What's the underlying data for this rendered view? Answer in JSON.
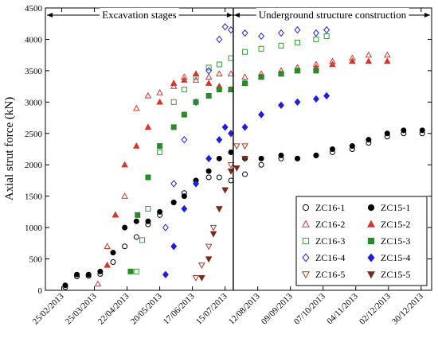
{
  "chart_data": {
    "type": "scatter",
    "title": "",
    "xlabel": "",
    "ylabel": "Axial strut force (kN)",
    "ylim": [
      0,
      4500
    ],
    "yticks": [
      0,
      500,
      1000,
      1500,
      2000,
      2500,
      3000,
      3500,
      4000,
      4500
    ],
    "xlim": [
      "2013-02-11",
      "2014-01-08"
    ],
    "xticks": [
      "2013-02-25",
      "2013-03-25",
      "2013-04-22",
      "2013-05-20",
      "2013-06-17",
      "2013-07-15",
      "2013-08-12",
      "2013-09-09",
      "2013-10-07",
      "2013-11-04",
      "2013-12-02",
      "2013-12-30"
    ],
    "xtick_labels": [
      "25/02/2013",
      "25/03/2013",
      "22/04/2013",
      "20/05/2013",
      "17/06/2013",
      "15/07/2013",
      "12/08/2013",
      "09/09/2013",
      "07/10/2013",
      "04/11/2013",
      "02/12/2013",
      "30/12/2013"
    ],
    "grid": false,
    "legend_position": "bottom-right",
    "annotations": {
      "divider_date": "2013-07-22",
      "left_label": "Excavation stages",
      "right_label": "Underground structure construction"
    },
    "series": [
      {
        "name": "ZC16-1",
        "marker": "circle-open",
        "color": "#000000",
        "dates": [
          "2013-02-28",
          "2013-03-10",
          "2013-03-20",
          "2013-03-30",
          "2013-04-10",
          "2013-04-20",
          "2013-04-30",
          "2013-05-10",
          "2013-05-20",
          "2013-06-01",
          "2013-06-10",
          "2013-06-20",
          "2013-07-01",
          "2013-07-10",
          "2013-07-20",
          "2013-08-01",
          "2013-08-15",
          "2013-09-01",
          "2013-09-15",
          "2013-10-01",
          "2013-10-15",
          "2013-11-01",
          "2013-11-15",
          "2013-12-01",
          "2013-12-15",
          "2013-12-31"
        ],
        "values": [
          50,
          220,
          230,
          260,
          450,
          700,
          850,
          1050,
          1200,
          1400,
          1550,
          1750,
          1800,
          1800,
          1750,
          1850,
          2000,
          2100,
          2100,
          2150,
          2200,
          2250,
          2350,
          2450,
          2500,
          2500
        ]
      },
      {
        "name": "ZC16-2",
        "marker": "triangle-up-open",
        "color": "#d9342a",
        "dates": [
          "2013-03-28",
          "2013-04-05",
          "2013-04-12",
          "2013-04-20",
          "2013-04-30",
          "2013-05-10",
          "2013-05-20",
          "2013-06-01",
          "2013-06-10",
          "2013-06-20",
          "2013-07-01",
          "2013-07-10",
          "2013-07-20",
          "2013-08-01",
          "2013-08-15",
          "2013-09-01",
          "2013-09-15",
          "2013-10-01",
          "2013-10-15",
          "2013-11-01",
          "2013-11-15",
          "2013-12-01"
        ],
        "values": [
          100,
          700,
          1200,
          1500,
          2900,
          3100,
          3150,
          3250,
          3400,
          3350,
          3400,
          3450,
          3450,
          3400,
          3450,
          3500,
          3550,
          3600,
          3650,
          3700,
          3750,
          3750
        ]
      },
      {
        "name": "ZC16-3",
        "marker": "square-open",
        "color": "#3a9a3a",
        "dates": [
          "2013-04-30",
          "2013-05-05",
          "2013-05-10",
          "2013-05-20",
          "2013-06-01",
          "2013-06-10",
          "2013-06-20",
          "2013-07-01",
          "2013-07-10",
          "2013-07-20",
          "2013-08-01",
          "2013-08-15",
          "2013-09-01",
          "2013-09-15",
          "2013-10-01",
          "2013-10-10"
        ],
        "values": [
          300,
          800,
          1300,
          2200,
          3000,
          3200,
          3400,
          3550,
          3600,
          3700,
          3800,
          3850,
          3900,
          3950,
          4000,
          4050
        ]
      },
      {
        "name": "ZC16-4",
        "marker": "diamond-open",
        "color": "#2222dd",
        "dates": [
          "2013-05-25",
          "2013-06-01",
          "2013-06-10",
          "2013-06-20",
          "2013-07-01",
          "2013-07-10",
          "2013-07-15",
          "2013-07-20",
          "2013-08-01",
          "2013-08-15",
          "2013-09-01",
          "2013-09-15",
          "2013-10-01",
          "2013-10-10"
        ],
        "values": [
          1000,
          1700,
          2400,
          3000,
          3500,
          4000,
          4200,
          4150,
          4100,
          4050,
          4100,
          4150,
          4100,
          4150
        ]
      },
      {
        "name": "ZC16-5",
        "marker": "triangle-down-open",
        "color": "#a83a28",
        "dates": [
          "2013-06-20",
          "2013-06-25",
          "2013-07-01",
          "2013-07-05",
          "2013-07-10",
          "2013-07-15",
          "2013-07-20",
          "2013-07-25",
          "2013-08-01"
        ],
        "values": [
          200,
          400,
          700,
          1000,
          1300,
          1600,
          2000,
          2300,
          2300
        ]
      },
      {
        "name": "ZC15-1",
        "marker": "circle-filled",
        "color": "#000000",
        "dates": [
          "2013-02-28",
          "2013-03-10",
          "2013-03-20",
          "2013-03-30",
          "2013-04-10",
          "2013-04-20",
          "2013-04-30",
          "2013-05-10",
          "2013-05-20",
          "2013-06-01",
          "2013-06-10",
          "2013-06-20",
          "2013-07-01",
          "2013-07-10",
          "2013-07-20",
          "2013-08-01",
          "2013-08-15",
          "2013-09-01",
          "2013-09-15",
          "2013-10-01",
          "2013-10-15",
          "2013-11-01",
          "2013-11-15",
          "2013-12-01",
          "2013-12-15",
          "2013-12-31"
        ],
        "values": [
          80,
          250,
          250,
          300,
          600,
          1000,
          1100,
          1100,
          1250,
          1400,
          1500,
          1750,
          1900,
          2100,
          2200,
          2100,
          2100,
          2150,
          2100,
          2150,
          2250,
          2300,
          2400,
          2500,
          2550,
          2550
        ]
      },
      {
        "name": "ZC15-2",
        "marker": "triangle-up-filled",
        "color": "#d9342a",
        "dates": [
          "2013-04-05",
          "2013-04-12",
          "2013-04-20",
          "2013-04-30",
          "2013-05-10",
          "2013-05-20",
          "2013-06-01",
          "2013-06-10",
          "2013-06-20",
          "2013-07-01",
          "2013-07-10",
          "2013-07-20",
          "2013-08-01",
          "2013-08-15",
          "2013-09-01",
          "2013-09-15",
          "2013-10-01",
          "2013-10-15",
          "2013-11-01",
          "2013-11-15",
          "2013-12-01"
        ],
        "values": [
          400,
          1200,
          2000,
          2300,
          2600,
          3000,
          3300,
          3350,
          3450,
          3300,
          3250,
          3200,
          3300,
          3400,
          3450,
          3500,
          3550,
          3600,
          3650,
          3650,
          3650
        ]
      },
      {
        "name": "ZC15-3",
        "marker": "square-filled",
        "color": "#2a8a2a",
        "dates": [
          "2013-04-25",
          "2013-05-01",
          "2013-05-10",
          "2013-05-20",
          "2013-06-01",
          "2013-06-10",
          "2013-06-20",
          "2013-07-01",
          "2013-07-10",
          "2013-07-20",
          "2013-08-01",
          "2013-08-15",
          "2013-09-01",
          "2013-09-15",
          "2013-10-01"
        ],
        "values": [
          300,
          1200,
          1800,
          2300,
          2600,
          2800,
          3000,
          3100,
          3200,
          3200,
          3300,
          3400,
          3450,
          3500,
          3500
        ]
      },
      {
        "name": "ZC15-4",
        "marker": "diamond-filled",
        "color": "#1e1ee0",
        "dates": [
          "2013-05-25",
          "2013-06-01",
          "2013-06-10",
          "2013-06-20",
          "2013-07-01",
          "2013-07-10",
          "2013-07-15",
          "2013-07-20",
          "2013-08-01",
          "2013-08-15",
          "2013-09-01",
          "2013-09-15",
          "2013-10-01",
          "2013-10-10"
        ],
        "values": [
          250,
          700,
          1300,
          1700,
          2100,
          2400,
          2600,
          2500,
          2600,
          2800,
          2950,
          3000,
          3050,
          3100
        ]
      },
      {
        "name": "ZC15-5",
        "marker": "triangle-down-filled",
        "color": "#7a2a18",
        "dates": [
          "2013-06-25",
          "2013-07-01",
          "2013-07-05",
          "2013-07-10",
          "2013-07-15",
          "2013-07-20",
          "2013-07-25",
          "2013-08-01"
        ],
        "values": [
          200,
          500,
          900,
          1300,
          1600,
          1900,
          1950,
          2100
        ]
      }
    ]
  }
}
